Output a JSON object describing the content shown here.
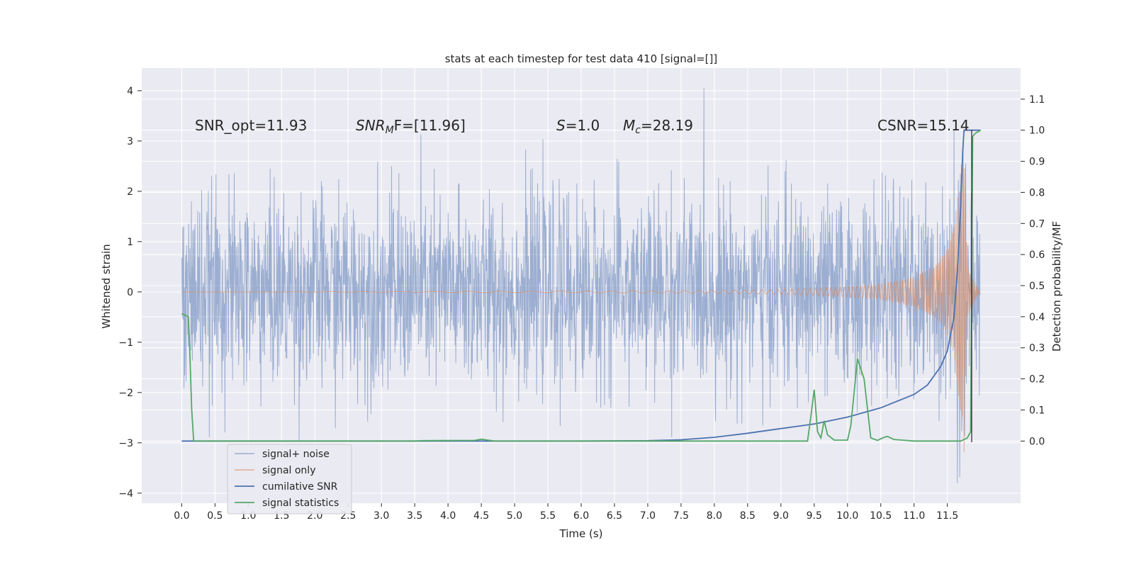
{
  "chart_data": {
    "type": "line",
    "title": "stats at each timestep for test data 410 [signal=[]]",
    "xlabel": "Time (s)",
    "ylabel": "Whitened strain",
    "y2label": "Detection probability/MF",
    "xlim": [
      -0.6,
      12.6
    ],
    "ylim": [
      -4.2,
      4.45
    ],
    "y2lim": [
      -0.2,
      1.2
    ],
    "grid": true,
    "legend_position": "lower-left",
    "x_ticks": [
      "0.0",
      "0.5",
      "1.0",
      "1.5",
      "2.0",
      "2.5",
      "3.0",
      "3.5",
      "4.0",
      "4.5",
      "5.0",
      "5.5",
      "6.0",
      "6.5",
      "7.0",
      "7.5",
      "8.0",
      "8.5",
      "9.0",
      "9.5",
      "10.0",
      "10.5",
      "11.0",
      "11.5"
    ],
    "y_ticks": [
      "4",
      "3",
      "2",
      "1",
      "0",
      "−1",
      "−2",
      "−3",
      "−4"
    ],
    "y2_ticks": [
      "1.1",
      "1.0",
      "0.9",
      "0.8",
      "0.7",
      "0.6",
      "0.5",
      "0.4",
      "0.3",
      "0.2",
      "0.1",
      "0.0"
    ],
    "annotations": {
      "snr_opt": "SNR_opt=11.93",
      "snr_mf_name": "SNR",
      "snr_mf_sub": "M",
      "snr_mf_rest": "F=[11.96]",
      "s_name": "S",
      "s_rest": "=1.0",
      "mc_name": "M",
      "mc_sub": "c",
      "mc_rest": "=28.19",
      "csnr": "CSNR=15.14"
    },
    "series": [
      {
        "name": "signal+ noise",
        "color": "#4c72b0",
        "axis": "left",
        "description_range": [
          -3.8,
          4.1
        ],
        "x_range": [
          0.0,
          11.99
        ]
      },
      {
        "name": "signal only",
        "color": "#dd8452",
        "axis": "left",
        "x_range": [
          0.0,
          11.99
        ],
        "amplitude_envelope": [
          [
            0.0,
            0.0
          ],
          [
            7.5,
            0.02
          ],
          [
            9.0,
            0.05
          ],
          [
            10.0,
            0.1
          ],
          [
            10.5,
            0.15
          ],
          [
            11.0,
            0.3
          ],
          [
            11.3,
            0.5
          ],
          [
            11.5,
            0.85
          ],
          [
            11.6,
            1.3
          ],
          [
            11.7,
            2.4
          ],
          [
            11.75,
            3.2
          ],
          [
            11.8,
            0.5
          ],
          [
            11.99,
            0.0
          ]
        ]
      },
      {
        "name": "cumilative SNR",
        "color": "#4c72b0",
        "axis": "right",
        "points": [
          [
            0.0,
            0.0
          ],
          [
            6.0,
            0.0
          ],
          [
            7.0,
            0.001
          ],
          [
            7.5,
            0.004
          ],
          [
            8.0,
            0.012
          ],
          [
            8.5,
            0.025
          ],
          [
            9.0,
            0.04
          ],
          [
            9.5,
            0.055
          ],
          [
            10.0,
            0.077
          ],
          [
            10.5,
            0.107
          ],
          [
            11.0,
            0.15
          ],
          [
            11.2,
            0.18
          ],
          [
            11.4,
            0.24
          ],
          [
            11.5,
            0.29
          ],
          [
            11.6,
            0.4
          ],
          [
            11.65,
            0.55
          ],
          [
            11.7,
            0.75
          ],
          [
            11.73,
            0.93
          ],
          [
            11.75,
            1.0
          ],
          [
            12.0,
            1.0
          ]
        ]
      },
      {
        "name": "signal statistics",
        "color": "#55a868",
        "axis": "right",
        "points": [
          [
            0.0,
            0.41
          ],
          [
            0.05,
            0.405
          ],
          [
            0.1,
            0.4
          ],
          [
            0.12,
            0.3
          ],
          [
            0.15,
            0.1
          ],
          [
            0.18,
            0.0
          ],
          [
            3.5,
            0.0
          ],
          [
            3.6,
            0.001
          ],
          [
            4.4,
            0.002
          ],
          [
            4.5,
            0.006
          ],
          [
            4.6,
            0.003
          ],
          [
            4.7,
            0.0
          ],
          [
            9.4,
            0.0
          ],
          [
            9.45,
            0.08
          ],
          [
            9.5,
            0.165
          ],
          [
            9.55,
            0.03
          ],
          [
            9.6,
            0.01
          ],
          [
            9.65,
            0.065
          ],
          [
            9.7,
            0.02
          ],
          [
            9.8,
            0.003
          ],
          [
            10.0,
            0.003
          ],
          [
            10.05,
            0.05
          ],
          [
            10.15,
            0.265
          ],
          [
            10.25,
            0.2
          ],
          [
            10.35,
            0.01
          ],
          [
            10.45,
            0.002
          ],
          [
            10.55,
            0.012
          ],
          [
            10.6,
            0.015
          ],
          [
            10.7,
            0.005
          ],
          [
            11.0,
            0.0
          ],
          [
            11.7,
            0.0
          ],
          [
            11.8,
            0.01
          ],
          [
            11.85,
            0.03
          ],
          [
            11.88,
            0.98
          ],
          [
            11.92,
            0.99
          ],
          [
            12.0,
            1.0
          ]
        ]
      }
    ]
  }
}
